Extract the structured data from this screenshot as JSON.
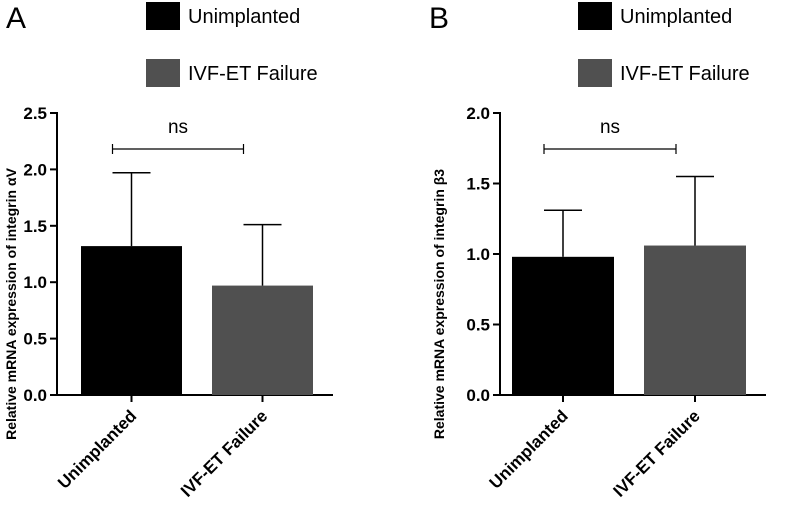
{
  "chart_data": [
    {
      "type": "bar",
      "panel_label": "A",
      "categories": [
        "Unimplanted",
        "IVF-ET Failure"
      ],
      "series": [
        {
          "name": "Unimplanted",
          "color": "#000000"
        },
        {
          "name": "IVF-ET Failure",
          "color": "#505050"
        }
      ],
      "values": [
        1.32,
        0.97
      ],
      "errors": [
        0.65,
        0.54
      ],
      "ylabel": "Relative mRNA expression of integrin αV",
      "ylim": [
        0,
        2.5
      ],
      "yticks": [
        "0.0",
        "0.5",
        "1.0",
        "1.5",
        "2.0",
        "2.5"
      ],
      "significance": "ns",
      "legend": [
        "Unimplanted",
        "IVF-ET Failure"
      ],
      "grid": false
    },
    {
      "type": "bar",
      "panel_label": "B",
      "categories": [
        "Unimplanted",
        "IVF-ET Failure"
      ],
      "series": [
        {
          "name": "Unimplanted",
          "color": "#000000"
        },
        {
          "name": "IVF-ET Failure",
          "color": "#505050"
        }
      ],
      "values": [
        0.98,
        1.06
      ],
      "errors": [
        0.33,
        0.49
      ],
      "ylabel": "Relative mRNA expression of integrin β3",
      "ylim": [
        0,
        2.0
      ],
      "yticks": [
        "0.0",
        "0.5",
        "1.0",
        "1.5",
        "2.0"
      ],
      "significance": "ns",
      "legend": [
        "Unimplanted",
        "IVF-ET Failure"
      ],
      "grid": false
    }
  ]
}
